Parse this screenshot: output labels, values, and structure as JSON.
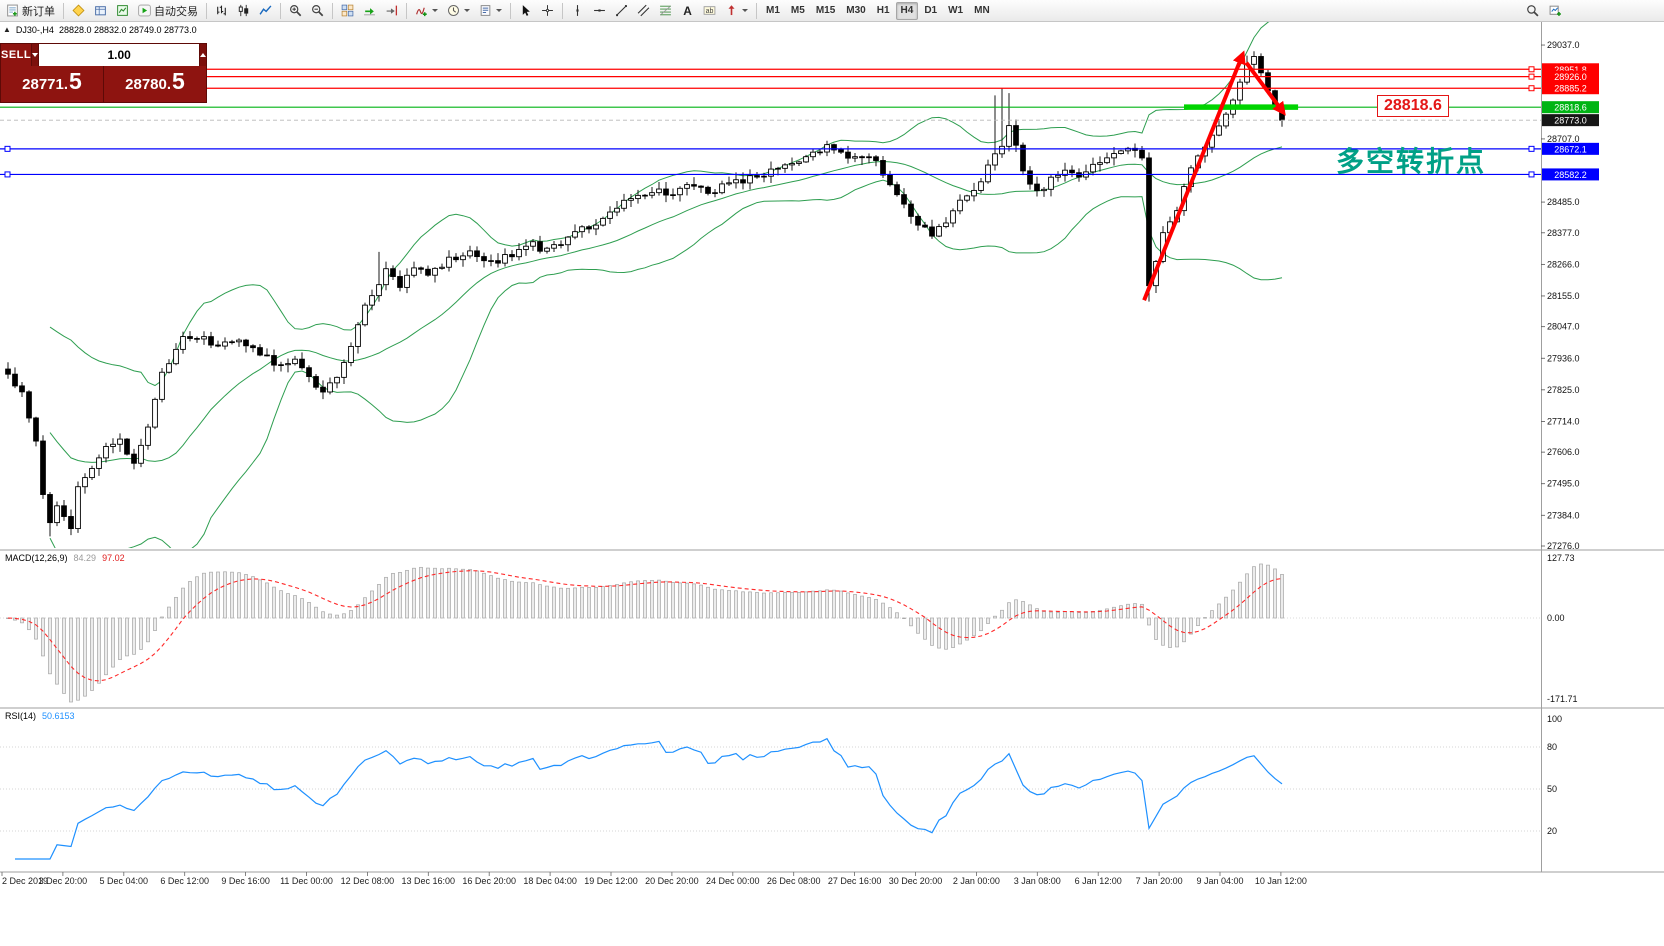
{
  "toolbar": {
    "new_order_label": "新订单",
    "auto_trading_label": "自动交易",
    "pre_autotrading_icons": [
      "metaeditor",
      "data-window",
      "market-watch"
    ],
    "groups": [
      {
        "items": [
          {
            "icon": "bar-chart"
          },
          {
            "icon": "candlestick-chart"
          },
          {
            "icon": "line-chart"
          }
        ]
      },
      {
        "items": [
          {
            "icon": "zoom-in"
          },
          {
            "icon": "zoom-out"
          }
        ]
      },
      {
        "items": [
          {
            "icon": "tile-windows"
          },
          {
            "icon": "auto-scroll"
          },
          {
            "icon": "chart-shift"
          }
        ]
      },
      {
        "items": [
          {
            "icon": "indicators",
            "caret": true
          },
          {
            "icon": "periods",
            "caret": true
          },
          {
            "icon": "templates",
            "caret": true
          }
        ]
      },
      {
        "items": [
          {
            "icon": "cursor"
          },
          {
            "icon": "crosshair"
          }
        ]
      },
      {
        "items": [
          {
            "icon": "vertical-line"
          },
          {
            "icon": "horizontal-line"
          },
          {
            "icon": "trendline"
          },
          {
            "icon": "equidistant-channel"
          },
          {
            "icon": "fibonacci"
          },
          {
            "icon": "text"
          },
          {
            "icon": "text-label"
          },
          {
            "icon": "arrows",
            "caret": true
          }
        ]
      }
    ],
    "timeframes": [
      "M1",
      "M5",
      "M15",
      "M30",
      "H1",
      "H4",
      "D1",
      "W1",
      "MN"
    ],
    "active_timeframe": "H4",
    "right_icons": [
      "search",
      "add-chart"
    ]
  },
  "symbol_header": {
    "symbol": "DJ30-,H4",
    "ohlc": "28828.0 28832.0 28749.0 28773.0"
  },
  "trade_panel": {
    "sell_label": "SELL",
    "buy_label": "BUY",
    "volume": "1.00",
    "sell_price_main": "28771.",
    "sell_price_pips": "5",
    "buy_price_main": "28780.",
    "buy_price_pips": "5"
  },
  "chart_data": {
    "type": "candlestick",
    "symbol": "DJ30-",
    "timeframe": "H4",
    "candle_count": 183,
    "current_price": 28773.0,
    "current_price_badge": "28773.0",
    "current_price_badge_color": "#161616",
    "price_axis": {
      "max": 29118,
      "min": 27269,
      "plain_ticks": [
        "29037.0",
        "28707.0",
        "28485.0",
        "28377.0",
        "28266.0",
        "28155.0",
        "28047.0",
        "27936.0",
        "27825.0",
        "27714.0",
        "27606.0",
        "27495.0",
        "27384.0",
        "27276.0"
      ]
    },
    "hlines": [
      {
        "price": 28951.8,
        "color": "#ff0000",
        "badge": "28951.8",
        "handles": "right"
      },
      {
        "price": 28926.0,
        "color": "#ff0000",
        "badge": "28926.0",
        "handles": "right"
      },
      {
        "price": 28885.2,
        "color": "#ff0000",
        "badge": "28885.2",
        "handles": "right"
      },
      {
        "price": 28818.6,
        "color": "#00b414",
        "badge": "28818.6",
        "handles": "none"
      },
      {
        "price": 28672.1,
        "color": "#0000ff",
        "badge": "28672.1",
        "handles": "both"
      },
      {
        "price": 28582.2,
        "color": "#0000ff",
        "badge": "28582.2",
        "handles": "both"
      }
    ],
    "thick_segment": {
      "price": 28818.6,
      "from_index": 168,
      "to_index": 184.3,
      "color": "#00d400",
      "width": 5.5
    },
    "arrow": {
      "color": "#ff0000",
      "width": 4,
      "up": [
        [
          162.3,
          28140
        ],
        [
          176.4,
          29005
        ]
      ],
      "down": [
        [
          176.9,
          28975
        ],
        [
          182.2,
          28800
        ]
      ]
    },
    "bollinger": {
      "period": 20,
      "deviation": 2,
      "color": "#2e9e50"
    },
    "close_waypoints": [
      [
        0,
        27880
      ],
      [
        2,
        27810
      ],
      [
        4,
        27640
      ],
      [
        5,
        27470
      ],
      [
        6,
        27350
      ],
      [
        7,
        27430
      ],
      [
        8,
        27390
      ],
      [
        9,
        27340
      ],
      [
        10,
        27480
      ],
      [
        12,
        27560
      ],
      [
        14,
        27620
      ],
      [
        16,
        27660
      ],
      [
        17,
        27600
      ],
      [
        18,
        27560
      ],
      [
        20,
        27700
      ],
      [
        22,
        27880
      ],
      [
        24,
        27960
      ],
      [
        25,
        28000
      ],
      [
        27,
        28010
      ],
      [
        30,
        27980
      ],
      [
        33,
        28005
      ],
      [
        36,
        27950
      ],
      [
        39,
        27905
      ],
      [
        41,
        27930
      ],
      [
        43,
        27865
      ],
      [
        45,
        27815
      ],
      [
        47,
        27870
      ],
      [
        49,
        27990
      ],
      [
        51,
        28110
      ],
      [
        53,
        28200
      ],
      [
        54,
        28245
      ],
      [
        56,
        28185
      ],
      [
        58,
        28260
      ],
      [
        60,
        28225
      ],
      [
        63,
        28285
      ],
      [
        66,
        28310
      ],
      [
        69,
        28270
      ],
      [
        72,
        28305
      ],
      [
        75,
        28340
      ],
      [
        77,
        28310
      ],
      [
        80,
        28360
      ],
      [
        83,
        28400
      ],
      [
        86,
        28445
      ],
      [
        89,
        28500
      ],
      [
        92,
        28530
      ],
      [
        95,
        28505
      ],
      [
        97,
        28540
      ],
      [
        100,
        28520
      ],
      [
        103,
        28550
      ],
      [
        106,
        28565
      ],
      [
        109,
        28600
      ],
      [
        112,
        28625
      ],
      [
        115,
        28655
      ],
      [
        117,
        28685
      ],
      [
        120,
        28635
      ],
      [
        123,
        28655
      ],
      [
        126,
        28545
      ],
      [
        129,
        28430
      ],
      [
        132,
        28370
      ],
      [
        134,
        28405
      ],
      [
        136,
        28480
      ],
      [
        139,
        28560
      ],
      [
        141,
        28650
      ],
      [
        142,
        28690
      ],
      [
        143,
        28750
      ],
      [
        145,
        28600
      ],
      [
        147,
        28520
      ],
      [
        149,
        28560
      ],
      [
        151,
        28600
      ],
      [
        153,
        28560
      ],
      [
        155,
        28605
      ],
      [
        157,
        28650
      ],
      [
        160,
        28685
      ],
      [
        162,
        28640
      ],
      [
        163,
        28200
      ],
      [
        164,
        28270
      ],
      [
        165,
        28380
      ],
      [
        167,
        28455
      ],
      [
        168,
        28550
      ],
      [
        170,
        28645
      ],
      [
        172,
        28725
      ],
      [
        174,
        28805
      ],
      [
        176,
        28905
      ],
      [
        177,
        28960
      ],
      [
        178,
        28995
      ],
      [
        179,
        28930
      ],
      [
        180,
        28878
      ],
      [
        181,
        28825
      ],
      [
        182,
        28773
      ]
    ],
    "spikes": [
      {
        "i": 6,
        "low": 27310
      },
      {
        "i": 9,
        "low": 27325
      },
      {
        "i": 53,
        "high": 28310
      },
      {
        "i": 141,
        "high": 28860
      },
      {
        "i": 142,
        "high": 28885
      },
      {
        "i": 143,
        "high": 28868
      },
      {
        "i": 163,
        "low": 28135
      },
      {
        "i": 177,
        "high": 29000
      },
      {
        "i": 178,
        "high": 29015
      },
      {
        "i": 180,
        "high": 28950
      }
    ],
    "time_labels": [
      "2 Dec 2019",
      "3 Dec 20:00",
      "5 Dec 04:00",
      "6 Dec 12:00",
      "9 Dec 16:00",
      "11 Dec 00:00",
      "12 Dec 08:00",
      "13 Dec 16:00",
      "16 Dec 20:00",
      "18 Dec 04:00",
      "19 Dec 12:00",
      "20 Dec 20:00",
      "24 Dec 00:00",
      "26 Dec 08:00",
      "27 Dec 16:00",
      "30 Dec 20:00",
      "2 Jan 00:00",
      "3 Jan 08:00",
      "6 Jan 12:00",
      "7 Jan 20:00",
      "9 Jan 04:00",
      "10 Jan 12:00"
    ],
    "macd": {
      "params": "MACD(12,26,9)",
      "main": "84.29",
      "signal": "97.02",
      "axis_labels": [
        "127.73",
        "0.00",
        "-171.71"
      ],
      "main_color": "#c9c9c9",
      "signal_color": "#ff2a2a"
    },
    "rsi": {
      "params": "RSI(14)",
      "value": "50.6153",
      "axis_labels": [
        "100",
        "80",
        "50",
        "20"
      ],
      "levels": [
        80,
        50,
        20
      ],
      "line_color": "#1e90ff"
    },
    "annotations": {
      "turning_point_text": "多空转折点",
      "turning_point_color": "#00a086",
      "price_tag": "28818.6",
      "price_tag_color": "#e41616"
    }
  }
}
